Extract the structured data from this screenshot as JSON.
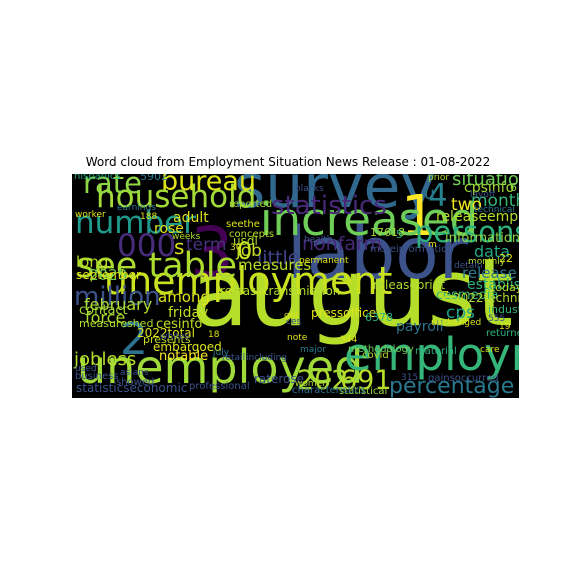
{
  "chart_data": {
    "type": "wordcloud",
    "title": "Word cloud from Employment Situation News Release : 01-08-2022",
    "background": "#000000",
    "colormap": "viridis",
    "words": [
      {
        "text": "august",
        "weight": 100,
        "color": "#b5de2b"
      },
      {
        "text": "labor",
        "weight": 74,
        "color": "#3b528b"
      },
      {
        "text": "3",
        "weight": 72,
        "color": "#440154"
      },
      {
        "text": "survey",
        "weight": 62,
        "color": "#31688e"
      },
      {
        "text": "1",
        "weight": 58,
        "color": "#fde725"
      },
      {
        "text": "unemployed",
        "weight": 47,
        "color": "#a0da39"
      },
      {
        "text": "employment",
        "weight": 45,
        "color": "#35b779"
      },
      {
        "text": "increased",
        "weight": 45,
        "color": "#6ece58"
      },
      {
        "text": "2",
        "weight": 44,
        "color": "#2c728e"
      },
      {
        "text": "unemployment",
        "weight": 38,
        "color": "#cae11f"
      },
      {
        "text": "see table",
        "weight": 34,
        "color": "#addc30"
      },
      {
        "text": "4",
        "weight": 30,
        "color": "#26828e"
      },
      {
        "text": "household",
        "weight": 30,
        "color": "#a2da37"
      },
      {
        "text": "number",
        "weight": 30,
        "color": "#1f9a8a"
      },
      {
        "text": "000",
        "weight": 30,
        "color": "#472d7b"
      },
      {
        "text": "persons",
        "weight": 28,
        "color": "#2db27d"
      },
      {
        "text": "rate",
        "weight": 28,
        "color": "#8fd744"
      },
      {
        "text": "bureau",
        "weight": 25,
        "color": "#dde318"
      },
      {
        "text": "202",
        "weight": 25,
        "color": "#addc30"
      },
      {
        "text": "691",
        "weight": 25,
        "color": "#b8de29"
      },
      {
        "text": "million",
        "weight": 24,
        "color": "#3b528b"
      },
      {
        "text": "statistics",
        "weight": 24,
        "color": "#482878"
      },
      {
        "text": "0",
        "weight": 22,
        "color": "#cae11f"
      },
      {
        "text": "percentage point",
        "weight": 20,
        "color": "#2a788e"
      },
      {
        "text": "s",
        "weight": 18,
        "color": "#dde318"
      },
      {
        "text": "nonfarm",
        "weight": 17,
        "color": "#482878"
      },
      {
        "text": "little",
        "weight": 17,
        "color": "#414487"
      },
      {
        "text": "jobless",
        "weight": 16,
        "color": "#b5de2b"
      },
      {
        "text": "situation",
        "weight": 15,
        "color": "#6ece58"
      },
      {
        "text": "month",
        "weight": 14,
        "color": "#35b779"
      },
      {
        "text": "u",
        "weight": 14,
        "color": "#2a788e"
      },
      {
        "text": "job",
        "weight": 14,
        "color": "#c2df23"
      },
      {
        "text": "term",
        "weight": 14,
        "color": "#46327e"
      },
      {
        "text": "cps",
        "weight": 14,
        "color": "#20a386"
      },
      {
        "text": "two",
        "weight": 14,
        "color": "#f1e51d"
      },
      {
        "text": "data",
        "weight": 13,
        "color": "#22a884"
      },
      {
        "text": "force",
        "weight": 13,
        "color": "#addc30"
      },
      {
        "text": "february",
        "weight": 13,
        "color": "#addc30"
      },
      {
        "text": "measures",
        "weight": 12,
        "color": "#b8de29"
      },
      {
        "text": "long",
        "weight": 12,
        "color": "#b8de29"
      },
      {
        "text": "2020",
        "weight": 12,
        "color": "#6ece58"
      },
      {
        "text": "release",
        "weight": 12,
        "color": "#2a788e"
      },
      {
        "text": "among",
        "weight": 12,
        "color": "#dde318"
      },
      {
        "text": "friday",
        "weight": 11,
        "color": "#c2df23"
      },
      {
        "text": "adult",
        "weight": 11,
        "color": "#dde318"
      },
      {
        "text": "rose",
        "weight": 11,
        "color": "#dde318"
      },
      {
        "text": "payroll",
        "weight": 11,
        "color": "#2c728e"
      },
      {
        "text": "establishment",
        "weight": 11,
        "color": "#2db27d"
      },
      {
        "text": "cpsinfo",
        "weight": 11,
        "color": "#a2da37"
      },
      {
        "text": "releaseemployment",
        "weight": 11,
        "color": "#b5de2b"
      },
      {
        "text": "information",
        "weight": 10,
        "color": "#8fd744"
      },
      {
        "text": "cesmedia",
        "weight": 10,
        "color": "#35b779"
      },
      {
        "text": "cesinfo",
        "weight": 10,
        "color": "#c2df23"
      },
      {
        "text": "contact",
        "weight": 10,
        "color": "#a2da37"
      },
      {
        "text": "notable",
        "weight": 10,
        "color": "#fde725"
      },
      {
        "text": "2022total",
        "weight": 9,
        "color": "#dde318"
      },
      {
        "text": "embargoed",
        "weight": 9,
        "color": "#dde318"
      },
      {
        "text": "releasetransmission",
        "weight": 9,
        "color": "#b5de2b"
      },
      {
        "text": "releaseprint",
        "weight": 9,
        "color": "#addc30"
      },
      {
        "text": "pressoffice",
        "weight": 9,
        "color": "#dde318"
      },
      {
        "text": "2022technical",
        "weight": 9,
        "color": "#addc30"
      },
      {
        "text": "raterose",
        "weight": 9,
        "color": "#3b528b"
      },
      {
        "text": "statisticseconomic",
        "weight": 9,
        "color": "#3b528b"
      },
      {
        "text": "usdl",
        "weight": 9,
        "color": "#addc30"
      },
      {
        "text": "september",
        "weight": 9,
        "color": "#dde318"
      },
      {
        "text": "measureshed",
        "weight": 8,
        "color": "#addc30"
      },
      {
        "text": "6378",
        "weight": 8,
        "color": "#2db27d"
      },
      {
        "text": "17618",
        "weight": 8,
        "color": "#a2da37"
      },
      {
        "text": "5902",
        "weight": 8,
        "color": "#2a788e"
      },
      {
        "text": "industry",
        "weight": 8,
        "color": "#35b779"
      },
      {
        "text": "5",
        "weight": 8,
        "color": "#2db27d"
      },
      {
        "text": "6",
        "weight": 8,
        "color": "#8fd744"
      },
      {
        "text": "7",
        "weight": 8,
        "color": "#dde318"
      },
      {
        "text": "22",
        "weight": 8,
        "color": "#dde318"
      },
      {
        "text": "today",
        "weight": 8,
        "color": "#b8de29"
      },
      {
        "text": "presents",
        "weight": 8,
        "color": "#c2df23"
      },
      {
        "text": "methodology",
        "weight": 7,
        "color": "#6ece58"
      },
      {
        "text": "statistical",
        "weight": 7,
        "color": "#a2da37"
      },
      {
        "text": "characteristics",
        "weight": 7,
        "color": "#2c728e"
      },
      {
        "text": "gainsoccurred",
        "weight": 7,
        "color": "#3b528b"
      },
      {
        "text": "material",
        "weight": 7,
        "color": "#2db27d"
      },
      {
        "text": "moreinformation",
        "weight": 7,
        "color": "#3b528b"
      },
      {
        "text": "covid",
        "weight": 7,
        "color": "#b5de2b"
      },
      {
        "text": "returned",
        "weight": 7,
        "color": "#2db27d"
      },
      {
        "text": "professional",
        "weight": 7,
        "color": "#3b528b"
      },
      {
        "text": "showed",
        "weight": 7,
        "color": "#3b528b"
      },
      {
        "text": "business",
        "weight": 7,
        "color": "#3b528b"
      },
      {
        "text": "reported",
        "weight": 7,
        "color": "#a2da37"
      },
      {
        "text": "concepts",
        "weight": 7,
        "color": "#b8de29"
      },
      {
        "text": "seethe",
        "weight": 7,
        "color": "#dde318"
      },
      {
        "text": "hispanics",
        "weight": 7,
        "color": "#20a386"
      },
      {
        "text": "unchanged",
        "weight": 6,
        "color": "#dde318"
      },
      {
        "text": "monthly",
        "weight": 6,
        "color": "#b5de2b"
      },
      {
        "text": "technical",
        "weight": 6,
        "color": "#2a788e"
      },
      {
        "text": "prior",
        "weight": 6,
        "color": "#addc30"
      },
      {
        "text": "permanent",
        "weight": 6,
        "color": "#dde318"
      },
      {
        "text": "detain",
        "weight": 6,
        "color": "#3b528b"
      },
      {
        "text": "blacks",
        "weight": 6,
        "color": "#3b528b"
      },
      {
        "text": "retail",
        "weight": 6,
        "color": "#3b528b"
      },
      {
        "text": "including",
        "weight": 6,
        "color": "#3b528b"
      },
      {
        "text": "earnings",
        "weight": 6,
        "color": "#2a788e"
      },
      {
        "text": "worker",
        "weight": 6,
        "color": "#dde318"
      },
      {
        "text": "whites",
        "weight": 6,
        "color": "#3b528b"
      },
      {
        "text": "asians",
        "weight": 6,
        "color": "#3b528b"
      },
      {
        "text": "layoff",
        "weight": 6,
        "color": "#3b528b"
      },
      {
        "text": "women",
        "weight": 6,
        "color": "#addc30"
      },
      {
        "text": "major",
        "weight": 6,
        "color": "#2a788e"
      },
      {
        "text": "note",
        "weight": 6,
        "color": "#dde318"
      },
      {
        "text": "july",
        "weight": 6,
        "color": "#2a788e"
      },
      {
        "text": "care",
        "weight": 6,
        "color": "#dde318"
      },
      {
        "text": "used",
        "weight": 6,
        "color": "#3b528b"
      },
      {
        "text": "weeks",
        "weight": 6,
        "color": "#addc30"
      },
      {
        "text": "health",
        "weight": 6,
        "color": "#3b528b"
      },
      {
        "text": "19",
        "weight": 6,
        "color": "#dde318"
      },
      {
        "text": "18",
        "weight": 6,
        "color": "#dde318"
      },
      {
        "text": "30",
        "weight": 6,
        "color": "#dde318"
      },
      {
        "text": "344",
        "weight": 6,
        "color": "#dde318"
      },
      {
        "text": "315",
        "weight": 6,
        "color": "#3b528b"
      },
      {
        "text": "555",
        "weight": 6,
        "color": "#3b528b"
      },
      {
        "text": "188",
        "weight": 5,
        "color": "#dde318"
      },
      {
        "text": "ces",
        "weight": 6,
        "color": "#3b528b"
      },
      {
        "text": "get",
        "weight": 6,
        "color": "#dde318"
      },
      {
        "text": "m",
        "weight": 6,
        "color": "#dde318"
      }
    ]
  }
}
